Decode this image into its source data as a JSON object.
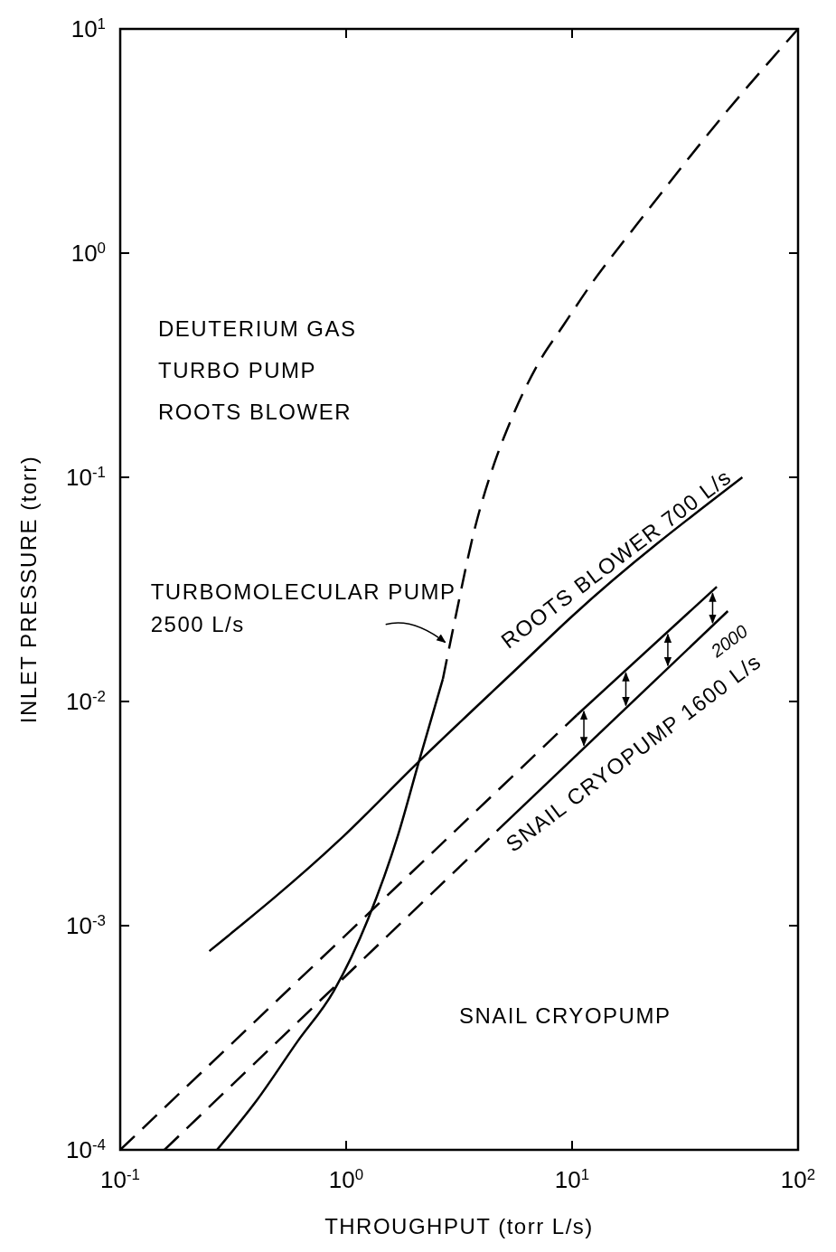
{
  "chart_data": {
    "type": "line",
    "xlabel": "THROUGHPUT (torr L/s)",
    "ylabel": "INLET PRESSURE (torr)",
    "log": "xy",
    "grid": false,
    "xlim": [
      0.1,
      100
    ],
    "ylim": [
      0.0001,
      10
    ],
    "xticks": [
      {
        "value": 0.1,
        "label": "10$^{-1}$"
      },
      {
        "value": 1,
        "label": "10$^{0}$"
      },
      {
        "value": 10,
        "label": "10$^{1}$"
      },
      {
        "value": 100,
        "label": "10$^{2}$"
      }
    ],
    "yticks": [
      {
        "value": 0.0001,
        "label": "10$^{-4}$"
      },
      {
        "value": 0.001,
        "label": "10$^{-3}$"
      },
      {
        "value": 0.01,
        "label": "10$^{-2}$"
      },
      {
        "value": 0.1,
        "label": "10$^{-1}$"
      },
      {
        "value": 1,
        "label": "10$^{0}$"
      },
      {
        "value": 10,
        "label": "10$^{1}$"
      }
    ],
    "series": [
      {
        "color": "#000000",
        "line_style": "solid",
        "x": [
          0.268,
          0.4,
          0.61,
          0.88,
          1.25,
          1.7,
          2.1,
          2.68
        ],
        "values": [
          0.0001,
          0.000165,
          0.000305,
          0.00051,
          0.00107,
          0.00255,
          0.0054,
          0.0126
        ]
      },
      {
        "color": "#000000",
        "line_style": "dashed",
        "x": [
          2.68,
          3.03,
          3.7,
          4.52,
          5.34,
          7.0,
          9.2,
          12.3,
          19.1,
          48,
          100
        ],
        "values": [
          0.0126,
          0.0231,
          0.0585,
          0.115,
          0.178,
          0.315,
          0.48,
          0.74,
          1.32,
          4.25,
          10
        ]
      },
      {
        "color": "#000000",
        "line_style": "solid",
        "x": [
          0.248,
          0.93,
          2.1,
          5.9,
          10,
          56.7
        ],
        "values": [
          0.00077,
          0.0024,
          0.0054,
          0.0145,
          0.024,
          0.1
        ]
      },
      {
        "color": "#000000",
        "line_style": "dashed",
        "x": [
          0.1,
          10.5
        ],
        "values": [
          0.0001,
          0.0087
        ]
      },
      {
        "color": "#000000",
        "line_style": "solid",
        "x": [
          10.5,
          43.7
        ],
        "values": [
          0.0087,
          0.0325
        ]
      },
      {
        "color": "#000000",
        "line_style": "dashed",
        "x": [
          0.157,
          4.64
        ],
        "values": [
          0.0001,
          0.00264
        ]
      },
      {
        "color": "#000000",
        "line_style": "solid",
        "x": [
          4.64,
          48.9
        ],
        "values": [
          0.00264,
          0.0253
        ]
      }
    ],
    "annotations": [
      "DEUTERIUM GAS",
      "TURBO PUMP",
      "ROOTS BLOWER",
      "SNAIL CRYOPUMP",
      "2000",
      {
        "text": "TURBOMOLECULAR PUMP 2500 L/s",
        "x": 2.85,
        "y": 0.018
      },
      {
        "text": "ROOTS BLOWER 700 L/s",
        "x": 5.9,
        "y": 0.0145
      },
      {
        "text": "SNAIL CRYOPUMP 1600 L/s",
        "x": 4.64,
        "y": 0.00264
      }
    ]
  }
}
